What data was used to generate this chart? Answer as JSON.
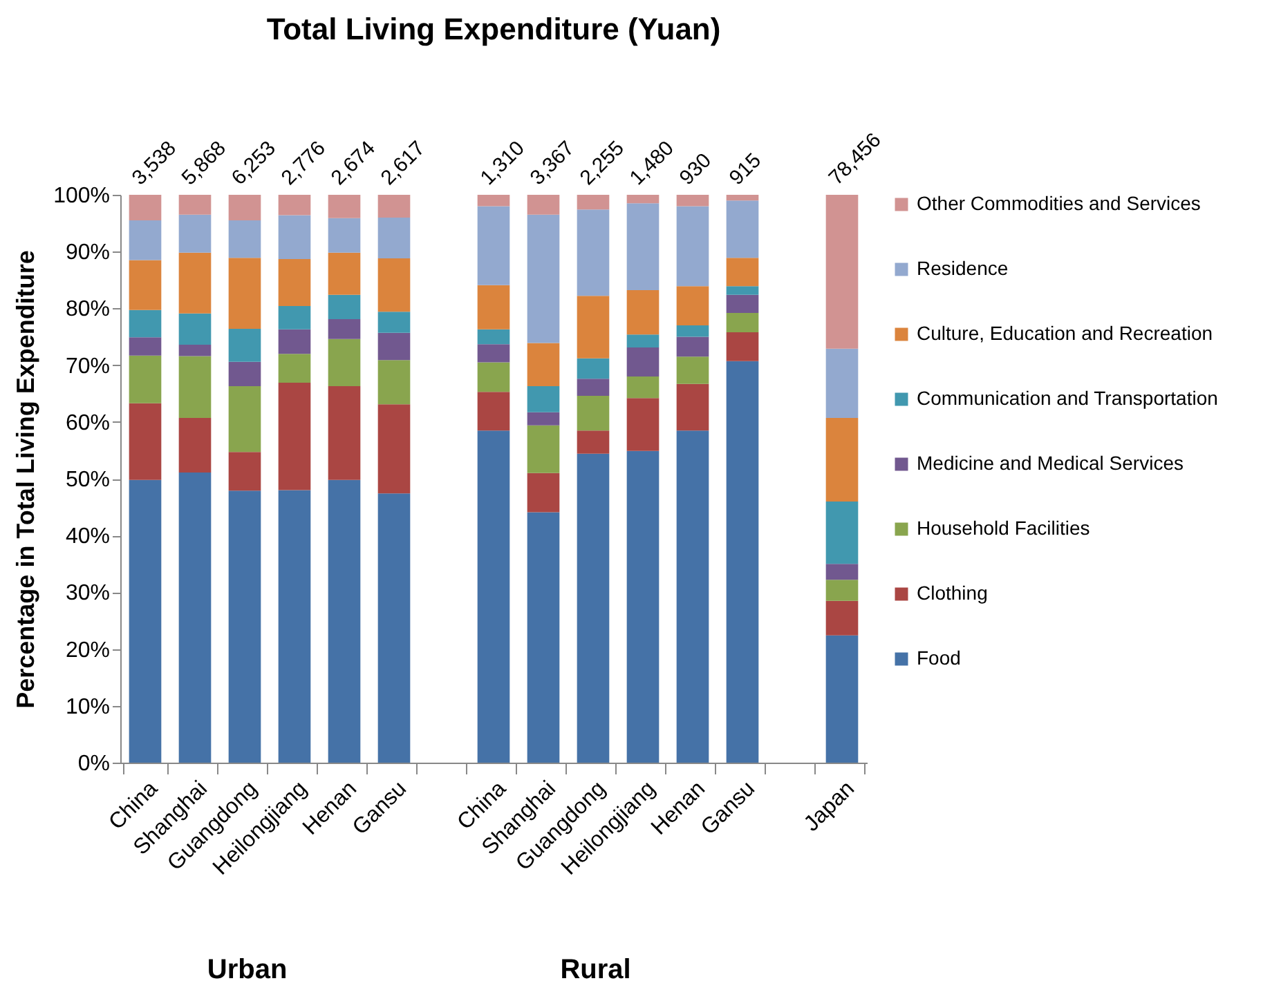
{
  "chart_data": {
    "type": "bar",
    "title": "Total Living Expenditure (Yuan)",
    "ylabel": "Percentage in Total Living Expenditure",
    "stacked": true,
    "legend": "right",
    "categories": [
      "China",
      "Shanghai",
      "Guangdong",
      "Heilongjiang",
      "Henan",
      "Gansu",
      null,
      "China",
      "Shanghai",
      "Guangdong",
      "Heilongjiang",
      "Henan",
      "Gansu",
      null,
      "Japan"
    ],
    "annotations": [
      {
        "text": "3,538",
        "y": 100
      },
      {
        "text": "5,868",
        "y": 100
      },
      {
        "text": "6,253",
        "y": 100
      },
      {
        "text": "2,776",
        "y": 100
      },
      {
        "text": "2,674",
        "y": 100
      },
      {
        "text": "2,617",
        "y": 100
      },
      {
        "text": "1,310",
        "y": 100
      },
      {
        "text": "3,367",
        "y": 100
      },
      {
        "text": "2,255",
        "y": 100
      },
      {
        "text": "1,480",
        "y": 100
      },
      {
        "text": "930",
        "y": 100
      },
      {
        "text": "915",
        "y": 100
      },
      {
        "text": "78,456",
        "y": 100
      },
      "Urban",
      "Rural"
    ],
    "ylim": [
      0,
      100
    ],
    "yticks": [
      {
        "value": 0,
        "label": "0%"
      },
      {
        "value": 10,
        "label": "10%"
      },
      {
        "value": 20,
        "label": "20%"
      },
      {
        "value": 30,
        "label": "30%"
      },
      {
        "value": 40,
        "label": "40%"
      },
      {
        "value": 50,
        "label": "50%"
      },
      {
        "value": 60,
        "label": "60%"
      },
      {
        "value": 70,
        "label": "70%"
      },
      {
        "value": 80,
        "label": "80%"
      },
      {
        "value": 90,
        "label": "90%"
      },
      {
        "value": 100,
        "label": "100%"
      }
    ],
    "series": [
      {
        "name": "Food",
        "color": "#4572a7",
        "values": [
          49.8,
          51.1,
          47.9,
          48.0,
          49.8,
          47.4,
          null,
          58.5,
          44.1,
          54.4,
          54.9,
          58.5,
          70.7,
          null,
          22.4
        ]
      },
      {
        "name": "Clothing",
        "color": "#aa4643",
        "values": [
          13.5,
          9.6,
          6.8,
          18.9,
          16.5,
          15.7,
          null,
          6.8,
          6.9,
          4.1,
          9.3,
          8.2,
          5.1,
          null,
          6.1
        ]
      },
      {
        "name": "Household Facilities",
        "color": "#89a54e",
        "values": [
          8.4,
          10.9,
          11.6,
          5.1,
          8.3,
          7.8,
          null,
          5.2,
          8.4,
          6.1,
          3.8,
          4.8,
          3.4,
          null,
          3.7
        ]
      },
      {
        "name": "Medicine and Medical Services",
        "color": "#71588f",
        "values": [
          3.2,
          2.0,
          4.3,
          4.3,
          3.5,
          4.8,
          null,
          3.2,
          2.3,
          3.0,
          5.1,
          3.5,
          3.2,
          null,
          2.8
        ]
      },
      {
        "name": "Communication and Transportation",
        "color": "#4198af",
        "values": [
          4.8,
          5.5,
          5.8,
          4.1,
          4.3,
          3.7,
          null,
          2.6,
          4.6,
          3.6,
          2.3,
          2.0,
          1.5,
          null,
          11.0
        ]
      },
      {
        "name": "Culture, Education and Recreation",
        "color": "#db843d",
        "values": [
          8.8,
          10.7,
          12.5,
          8.3,
          7.4,
          9.4,
          null,
          7.8,
          7.6,
          11.0,
          7.8,
          6.9,
          5.0,
          null,
          14.7
        ]
      },
      {
        "name": "Residence",
        "color": "#93a9cf",
        "values": [
          7.0,
          6.7,
          6.6,
          7.7,
          6.1,
          7.2,
          null,
          13.9,
          22.6,
          15.2,
          15.3,
          14.1,
          10.1,
          null,
          12.2
        ]
      },
      {
        "name": "Other Commodities and Services",
        "color": "#d19392",
        "values": [
          4.5,
          3.5,
          4.5,
          3.6,
          4.1,
          4.0,
          null,
          2.0,
          3.5,
          2.6,
          1.5,
          2.0,
          1.0,
          null,
          27.1
        ]
      }
    ]
  }
}
